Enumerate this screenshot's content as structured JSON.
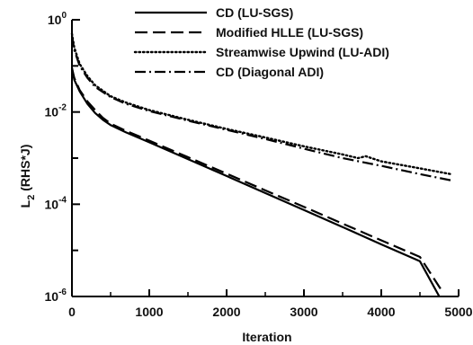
{
  "chart_data": {
    "type": "line",
    "title": "",
    "xlabel": "Iteration",
    "ylabel": "L2 (RHS*J)",
    "ylabel_main": "L",
    "ylabel_sub": "2",
    "ylabel_rest": " (RHS*J)",
    "xlim": [
      0,
      5000
    ],
    "ylim": [
      1e-06,
      1
    ],
    "yscale": "log",
    "grid": false,
    "legend_position": "top-right",
    "x_ticks": [
      {
        "value": 0,
        "label": "0"
      },
      {
        "value": 1000,
        "label": "1000"
      },
      {
        "value": 2000,
        "label": "2000"
      },
      {
        "value": 3000,
        "label": "3000"
      },
      {
        "value": 4000,
        "label": "4000"
      },
      {
        "value": 5000,
        "label": "5000"
      }
    ],
    "y_ticks": [
      {
        "value": 1,
        "base": "10",
        "exp": "0"
      },
      {
        "value": 0.01,
        "base": "10",
        "exp": "-2"
      },
      {
        "value": 0.0001,
        "base": "10",
        "exp": "-4"
      },
      {
        "value": 1e-06,
        "base": "10",
        "exp": "-6"
      }
    ],
    "series": [
      {
        "name": "CD (LU-SGS)",
        "style": "solid",
        "color": "#000000",
        "x": [
          0,
          30,
          100,
          200,
          300,
          400,
          500,
          700,
          1000,
          1500,
          2000,
          2500,
          3000,
          3500,
          4000,
          4500,
          4750
        ],
        "y": [
          0.09,
          0.05,
          0.028,
          0.015,
          0.0095,
          0.0068,
          0.0052,
          0.0036,
          0.0022,
          0.00095,
          0.00041,
          0.000175,
          7.5e-05,
          3.2e-05,
          1.35e-05,
          5.8e-06,
          1e-06
        ]
      },
      {
        "name": "Modified HLLE (LU-SGS)",
        "style": "dashed",
        "color": "#000000",
        "x": [
          0,
          30,
          100,
          200,
          300,
          400,
          500,
          700,
          1000,
          1500,
          2000,
          2500,
          3000,
          3500,
          4000,
          4500,
          4800
        ],
        "y": [
          0.09,
          0.055,
          0.03,
          0.017,
          0.011,
          0.0075,
          0.0056,
          0.0039,
          0.0024,
          0.00105,
          0.00046,
          0.0002,
          8.8e-05,
          3.8e-05,
          1.65e-05,
          7.2e-06,
          1.2e-06
        ]
      },
      {
        "name": "Streamwise Upwind (LU-ADI)",
        "style": "dotted",
        "color": "#000000",
        "x": [
          0,
          30,
          100,
          200,
          300,
          500,
          700,
          1000,
          1500,
          2000,
          2500,
          3000,
          3500,
          3700,
          3800,
          4000,
          4500,
          4900
        ],
        "y": [
          0.5,
          0.25,
          0.11,
          0.06,
          0.038,
          0.022,
          0.016,
          0.011,
          0.0068,
          0.0043,
          0.0028,
          0.0018,
          0.0012,
          0.001,
          0.0011,
          0.00085,
          0.0006,
          0.00045
        ]
      },
      {
        "name": "CD (Diagonal ADI)",
        "style": "dashdot",
        "color": "#000000",
        "x": [
          0,
          30,
          100,
          200,
          300,
          500,
          700,
          1000,
          1500,
          2000,
          2500,
          3000,
          3500,
          4000,
          4500,
          4900
        ],
        "y": [
          0.45,
          0.22,
          0.1,
          0.055,
          0.035,
          0.021,
          0.015,
          0.0105,
          0.0065,
          0.0041,
          0.0026,
          0.0016,
          0.001,
          0.00068,
          0.00045,
          0.00033
        ]
      }
    ]
  }
}
